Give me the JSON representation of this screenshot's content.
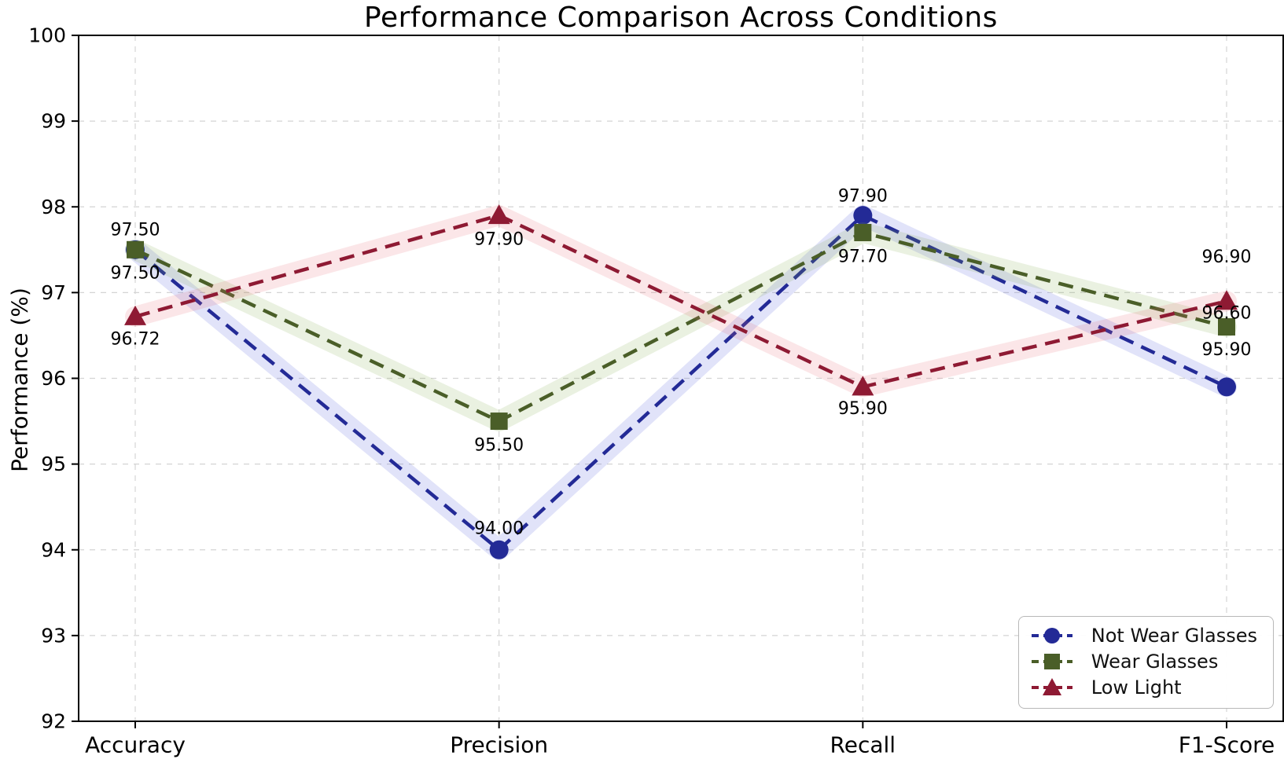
{
  "chart_data": {
    "type": "line",
    "title": "Performance Comparison Across Conditions",
    "ylabel": "Performance (%)",
    "xlabel": "",
    "categories": [
      "Accuracy",
      "Precision",
      "Recall",
      "F1-Score"
    ],
    "ylim": [
      92,
      100
    ],
    "yticks": [
      92,
      93,
      94,
      95,
      96,
      97,
      98,
      99,
      100
    ],
    "grid": true,
    "grid_style": "dashed",
    "line_style": "dashed",
    "legend_position": "lower-right",
    "series": [
      {
        "name": "Not Wear Glasses",
        "marker": "circle",
        "color": "#232a96",
        "glow_color": "rgba(80,90,220,0.17)",
        "values": [
          97.5,
          94.0,
          97.9,
          95.9
        ],
        "data_labels": [
          "97.50",
          "94.00",
          "97.90",
          "95.90"
        ],
        "label_dy": [
          30,
          -27,
          -24,
          -47
        ]
      },
      {
        "name": "Wear Glasses",
        "marker": "square",
        "color": "#4a5e28",
        "glow_color": "rgba(130,170,75,0.17)",
        "values": [
          97.5,
          95.5,
          97.7,
          96.6
        ],
        "data_labels": [
          "97.50",
          "95.50",
          "97.70",
          "96.60"
        ],
        "label_dy": [
          -25,
          31,
          31,
          -17
        ]
      },
      {
        "name": "Low Light",
        "marker": "triangle",
        "color": "#8e1a33",
        "glow_color": "rgba(230,100,115,0.16)",
        "values": [
          96.72,
          97.9,
          95.9,
          96.9
        ],
        "data_labels": [
          "96.72",
          "97.90",
          "95.90",
          "96.90"
        ],
        "label_dy": [
          29,
          31,
          28,
          -56
        ]
      }
    ]
  }
}
